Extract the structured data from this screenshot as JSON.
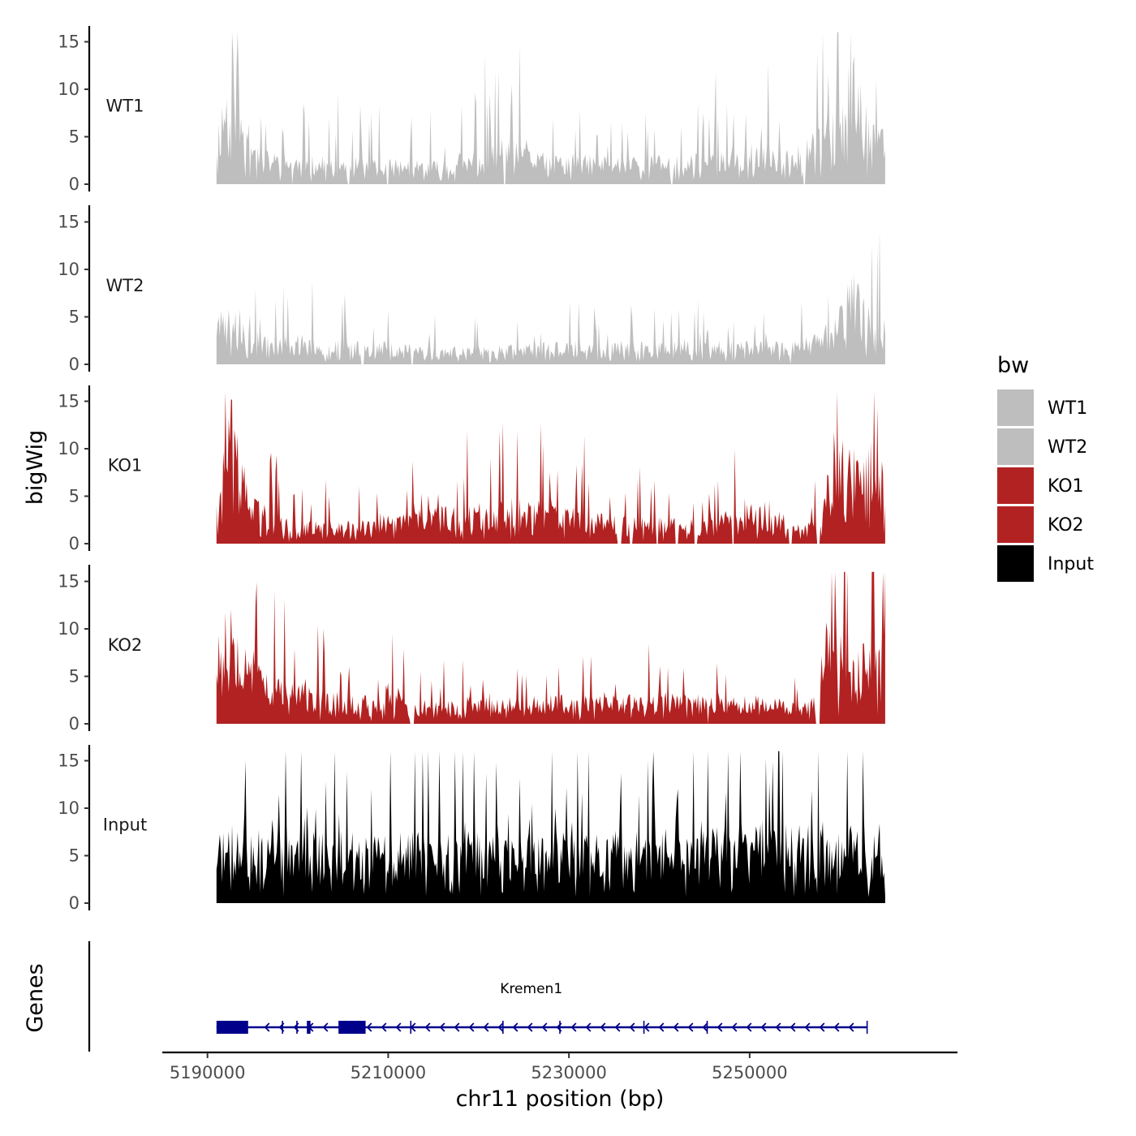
{
  "chart_data": {
    "type": "area",
    "chromosome": "chr11",
    "x_range": [
      5191000,
      5265000
    ],
    "x_axis": {
      "title": "chr11 position (bp)",
      "ticks": [
        5190000,
        5210000,
        5230000,
        5250000
      ],
      "tick_labels": [
        "5190000",
        "5210000",
        "5230000",
        "5250000"
      ]
    },
    "y_axis": {
      "title": "bigWig",
      "ylim": [
        0,
        16
      ],
      "ticks": [
        0,
        5,
        10,
        15
      ],
      "tick_labels": [
        "0",
        "5",
        "10",
        "15"
      ]
    },
    "gene_panel_title": "Genes",
    "legend": {
      "title": "bw",
      "entries": [
        {
          "label": "WT1",
          "color": "#bebebe"
        },
        {
          "label": "WT2",
          "color": "#bebebe"
        },
        {
          "label": "KO1",
          "color": "#b22222"
        },
        {
          "label": "KO2",
          "color": "#b22222"
        },
        {
          "label": "Input",
          "color": "#000000"
        }
      ]
    },
    "series": [
      {
        "name": "WT1",
        "color": "#bebebe",
        "seed": 11,
        "base": 1.4,
        "spike": 3.0,
        "anchors": [
          [
            5191000,
            5.5
          ],
          [
            5193000,
            12.5
          ],
          [
            5194000,
            6
          ],
          [
            5196000,
            3
          ],
          [
            5200000,
            2.5
          ],
          [
            5216000,
            2
          ],
          [
            5223000,
            4
          ],
          [
            5228000,
            2.5
          ],
          [
            5242000,
            2.5
          ],
          [
            5250000,
            3.5
          ],
          [
            5255000,
            3
          ],
          [
            5259000,
            6.5
          ],
          [
            5261500,
            11
          ],
          [
            5263000,
            7
          ],
          [
            5265000,
            5.5
          ]
        ],
        "gaps": [
          [
            5199300,
            5199500
          ],
          [
            5205500,
            5205700
          ],
          [
            5209800,
            5210000
          ],
          [
            5222800,
            5223000
          ],
          [
            5241300,
            5241500
          ],
          [
            5255900,
            5256200
          ]
        ]
      },
      {
        "name": "WT2",
        "color": "#bebebe",
        "seed": 23,
        "base": 1.2,
        "spike": 2.6,
        "anchors": [
          [
            5191000,
            5
          ],
          [
            5193000,
            5
          ],
          [
            5196000,
            2.5
          ],
          [
            5200000,
            2.5
          ],
          [
            5218000,
            1.5
          ],
          [
            5230000,
            2
          ],
          [
            5248000,
            2
          ],
          [
            5254000,
            2
          ],
          [
            5257000,
            2.5
          ],
          [
            5259000,
            4
          ],
          [
            5261500,
            8
          ],
          [
            5262500,
            6
          ],
          [
            5265000,
            3.5
          ]
        ],
        "gaps": [
          [
            5207000,
            5207300
          ],
          [
            5212500,
            5212800
          ],
          [
            5254400,
            5254600
          ]
        ]
      },
      {
        "name": "KO1",
        "color": "#b22222",
        "seed": 37,
        "base": 1.2,
        "spike": 2.6,
        "anchors": [
          [
            5191000,
            7
          ],
          [
            5192700,
            12.5
          ],
          [
            5193600,
            8
          ],
          [
            5195000,
            4
          ],
          [
            5197000,
            3.5
          ],
          [
            5199000,
            2
          ],
          [
            5208000,
            2
          ],
          [
            5213000,
            3
          ],
          [
            5224000,
            4
          ],
          [
            5236000,
            2.5
          ],
          [
            5245000,
            2
          ],
          [
            5250000,
            3.5
          ],
          [
            5255000,
            2.5
          ],
          [
            5257500,
            2
          ],
          [
            5258500,
            6
          ],
          [
            5260500,
            9
          ],
          [
            5262500,
            10
          ],
          [
            5265000,
            7
          ]
        ],
        "gaps": [
          [
            5235300,
            5235800
          ],
          [
            5236700,
            5237100
          ],
          [
            5239600,
            5239900
          ],
          [
            5241800,
            5242100
          ],
          [
            5243900,
            5244200
          ],
          [
            5248000,
            5248300
          ],
          [
            5254300,
            5254700
          ],
          [
            5257400,
            5257800
          ]
        ]
      },
      {
        "name": "KO2",
        "color": "#b22222",
        "seed": 53,
        "base": 1.3,
        "spike": 2.7,
        "anchors": [
          [
            5191000,
            9
          ],
          [
            5192700,
            12
          ],
          [
            5194500,
            7
          ],
          [
            5197000,
            4.5
          ],
          [
            5200000,
            3.5
          ],
          [
            5205000,
            2.5
          ],
          [
            5208000,
            2
          ],
          [
            5210500,
            4
          ],
          [
            5212500,
            1.5
          ],
          [
            5220000,
            2.5
          ],
          [
            5230000,
            2.5
          ],
          [
            5240000,
            2.5
          ],
          [
            5250000,
            2.5
          ],
          [
            5256000,
            2
          ],
          [
            5257500,
            2.5
          ],
          [
            5258500,
            9
          ],
          [
            5260500,
            9
          ],
          [
            5263000,
            8
          ],
          [
            5265000,
            8
          ]
        ],
        "gaps": [
          [
            5212400,
            5212900
          ],
          [
            5245300,
            5245500
          ],
          [
            5257300,
            5257800
          ]
        ]
      },
      {
        "name": "Input",
        "color": "#000000",
        "seed": 71,
        "base": 4.8,
        "spike": 2.4,
        "anchors": [
          [
            5191000,
            6
          ],
          [
            5200000,
            6.5
          ],
          [
            5215000,
            6
          ],
          [
            5230000,
            6
          ],
          [
            5245000,
            6.5
          ],
          [
            5255000,
            7
          ],
          [
            5262000,
            6.5
          ],
          [
            5265000,
            5.5
          ]
        ],
        "gaps": []
      }
    ],
    "gene": {
      "name": "Kremen1",
      "color": "#00008b",
      "start": 5191000,
      "end": 5263000,
      "strand": "-",
      "exons": [
        [
          5191000,
          5194500
        ],
        [
          5204500,
          5207500
        ],
        [
          5201000,
          5201400
        ]
      ],
      "exon_boundaries": [
        5198300,
        5199900,
        5201200,
        5206800,
        5212500,
        5222700,
        5229000,
        5238300,
        5245300,
        5263000
      ]
    }
  }
}
